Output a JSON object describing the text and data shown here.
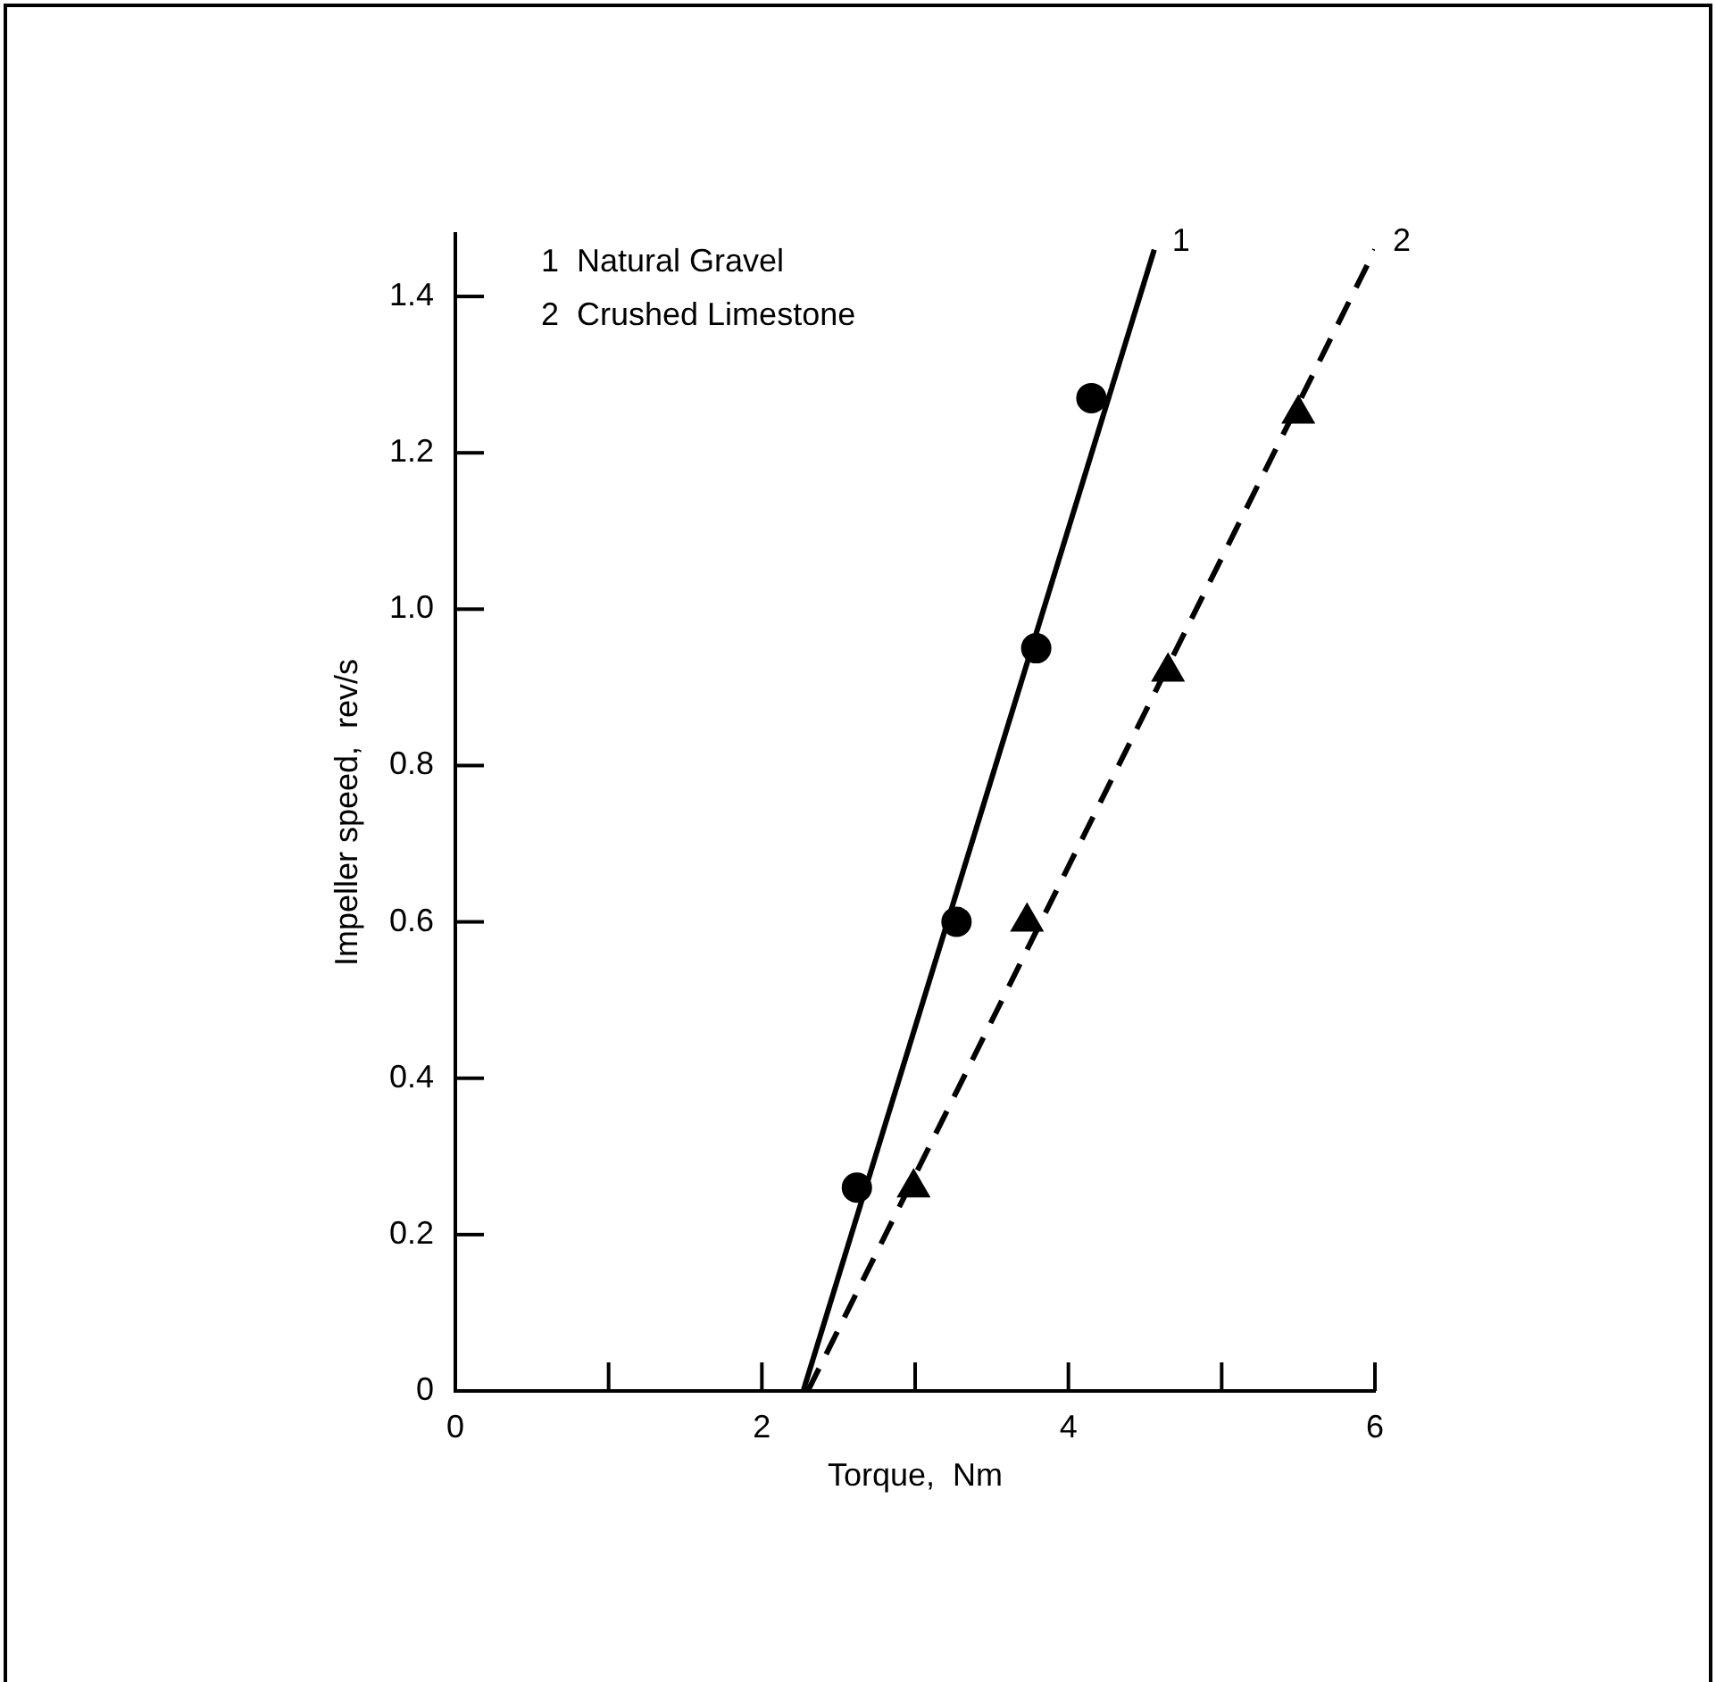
{
  "chart_data": {
    "type": "scatter",
    "xlabel": "Torque,  Nm",
    "ylabel": "Impeller speed,  rev/s",
    "xlim": [
      0,
      6
    ],
    "ylim": [
      0,
      1.48
    ],
    "xticks": [
      0,
      {
        "value": 1,
        "label": null
      },
      2,
      {
        "value": 3,
        "label": null
      },
      4,
      {
        "value": 5,
        "label": null
      },
      6
    ],
    "yticks": [
      0,
      0.2,
      0.4,
      0.6,
      0.8,
      {
        "value": 1,
        "label": "1.0"
      },
      1.2,
      1.4
    ],
    "grid": false,
    "legend": false,
    "series": [
      {
        "type": "scatter",
        "marker": "circle",
        "color": "#000000",
        "x": [
          2.62,
          3.27,
          3.79,
          4.15
        ],
        "values": [
          0.26,
          0.6,
          0.95,
          1.27
        ]
      },
      {
        "type": "scatter",
        "marker": "triangle",
        "color": "#000000",
        "x": [
          2.99,
          3.73,
          4.65,
          5.5
        ],
        "values": [
          0.26,
          0.6,
          0.92,
          1.25
        ]
      },
      {
        "type": "line",
        "marker": "none",
        "line_style": "solid",
        "color": "#000000",
        "x": [
          2.27,
          4.56
        ],
        "values": [
          0,
          1.46
        ]
      },
      {
        "type": "line",
        "marker": "none",
        "line_style": "dashed",
        "color": "#000000",
        "x": [
          2.3,
          6.0
        ],
        "values": [
          0,
          1.46
        ]
      }
    ],
    "annotations": [
      "1  Natural Gravel",
      "2  Crushed Limestone",
      {
        "text": "1",
        "x": 4.56,
        "y": 1.46
      },
      {
        "text": "2",
        "x": 6.0,
        "y": 1.46
      }
    ]
  }
}
